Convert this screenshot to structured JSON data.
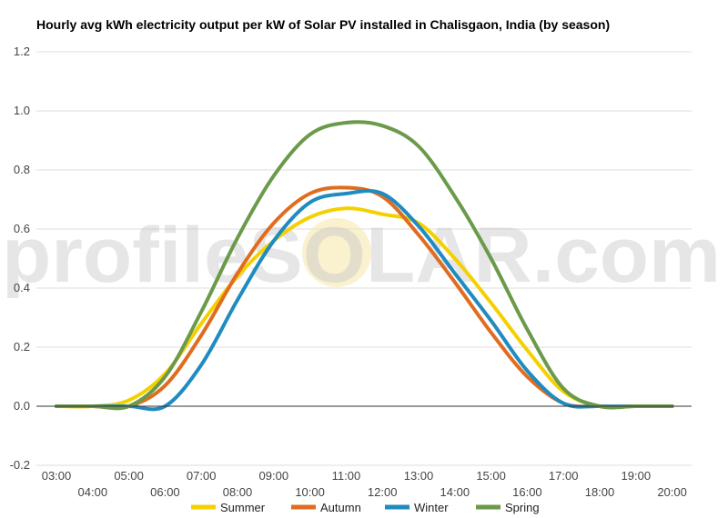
{
  "chart_data": {
    "type": "line",
    "title": "Hourly avg kWh electricity output per kW of Solar PV installed in Chalisgaon, India (by season)",
    "xlabel": "",
    "ylabel": "",
    "categories": [
      "03:00",
      "04:00",
      "05:00",
      "06:00",
      "07:00",
      "08:00",
      "09:00",
      "10:00",
      "11:00",
      "12:00",
      "13:00",
      "14:00",
      "15:00",
      "16:00",
      "17:00",
      "18:00",
      "19:00",
      "20:00"
    ],
    "yticks": [
      "1.2",
      "1.0",
      "0.8",
      "0.6",
      "0.4",
      "0.2",
      "0.0",
      "-0.2"
    ],
    "ylim": [
      -0.2,
      1.2
    ],
    "grid": true,
    "legend_position": "bottom",
    "series": [
      {
        "name": "Summer",
        "color": "#f5d000",
        "values": [
          0,
          0,
          0.02,
          0.11,
          0.28,
          0.44,
          0.56,
          0.64,
          0.67,
          0.65,
          0.62,
          0.5,
          0.35,
          0.19,
          0.05,
          0,
          0,
          0
        ]
      },
      {
        "name": "Autumn",
        "color": "#e06c1f",
        "values": [
          0,
          0,
          0,
          0.07,
          0.24,
          0.45,
          0.62,
          0.72,
          0.74,
          0.71,
          0.58,
          0.42,
          0.25,
          0.1,
          0.01,
          0,
          0,
          0
        ]
      },
      {
        "name": "Winter",
        "color": "#1f8bc0",
        "values": [
          0,
          0,
          0,
          0,
          0.14,
          0.36,
          0.56,
          0.69,
          0.72,
          0.72,
          0.61,
          0.45,
          0.29,
          0.12,
          0.01,
          0,
          0,
          0
        ]
      },
      {
        "name": "Spring",
        "color": "#6a9a4a",
        "values": [
          0,
          0,
          0,
          0.1,
          0.32,
          0.57,
          0.78,
          0.92,
          0.96,
          0.95,
          0.88,
          0.71,
          0.5,
          0.26,
          0.06,
          0,
          0,
          0
        ]
      }
    ],
    "watermark": "profileSOLAR.com"
  }
}
